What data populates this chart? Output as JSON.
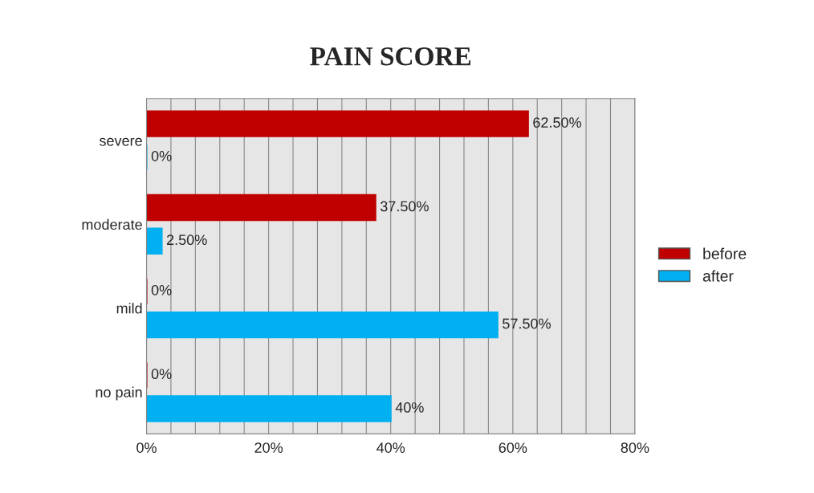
{
  "chart_data": {
    "type": "bar",
    "orientation": "horizontal",
    "title": "PAIN SCORE",
    "categories": [
      "severe",
      "moderate",
      "mild",
      "no pain"
    ],
    "series": [
      {
        "name": "before",
        "color": "#c00000",
        "values": [
          62.5,
          37.5,
          0,
          0
        ],
        "value_labels": [
          "62.50%",
          "37.50%",
          "0%",
          "0%"
        ]
      },
      {
        "name": "after",
        "color": "#00b0f0",
        "values": [
          0,
          2.5,
          57.5,
          40
        ],
        "value_labels": [
          "0%",
          "2.50%",
          "57.50%",
          "40%"
        ]
      }
    ],
    "xlim": [
      0,
      80
    ],
    "xticks": [
      {
        "value": 0,
        "label": "0%"
      },
      {
        "value": 4,
        "label": null
      },
      {
        "value": 8,
        "label": null
      },
      {
        "value": 12,
        "label": null
      },
      {
        "value": 16,
        "label": null
      },
      {
        "value": 20,
        "label": "20%"
      },
      {
        "value": 24,
        "label": null
      },
      {
        "value": 28,
        "label": null
      },
      {
        "value": 32,
        "label": null
      },
      {
        "value": 36,
        "label": null
      },
      {
        "value": 40,
        "label": "40%"
      },
      {
        "value": 44,
        "label": null
      },
      {
        "value": 48,
        "label": null
      },
      {
        "value": 52,
        "label": null
      },
      {
        "value": 56,
        "label": null
      },
      {
        "value": 60,
        "label": "60%"
      },
      {
        "value": 64,
        "label": null
      },
      {
        "value": 68,
        "label": null
      },
      {
        "value": 72,
        "label": null
      },
      {
        "value": 76,
        "label": null
      },
      {
        "value": 80,
        "label": "80%"
      }
    ],
    "grid": "x",
    "legend": "right"
  }
}
